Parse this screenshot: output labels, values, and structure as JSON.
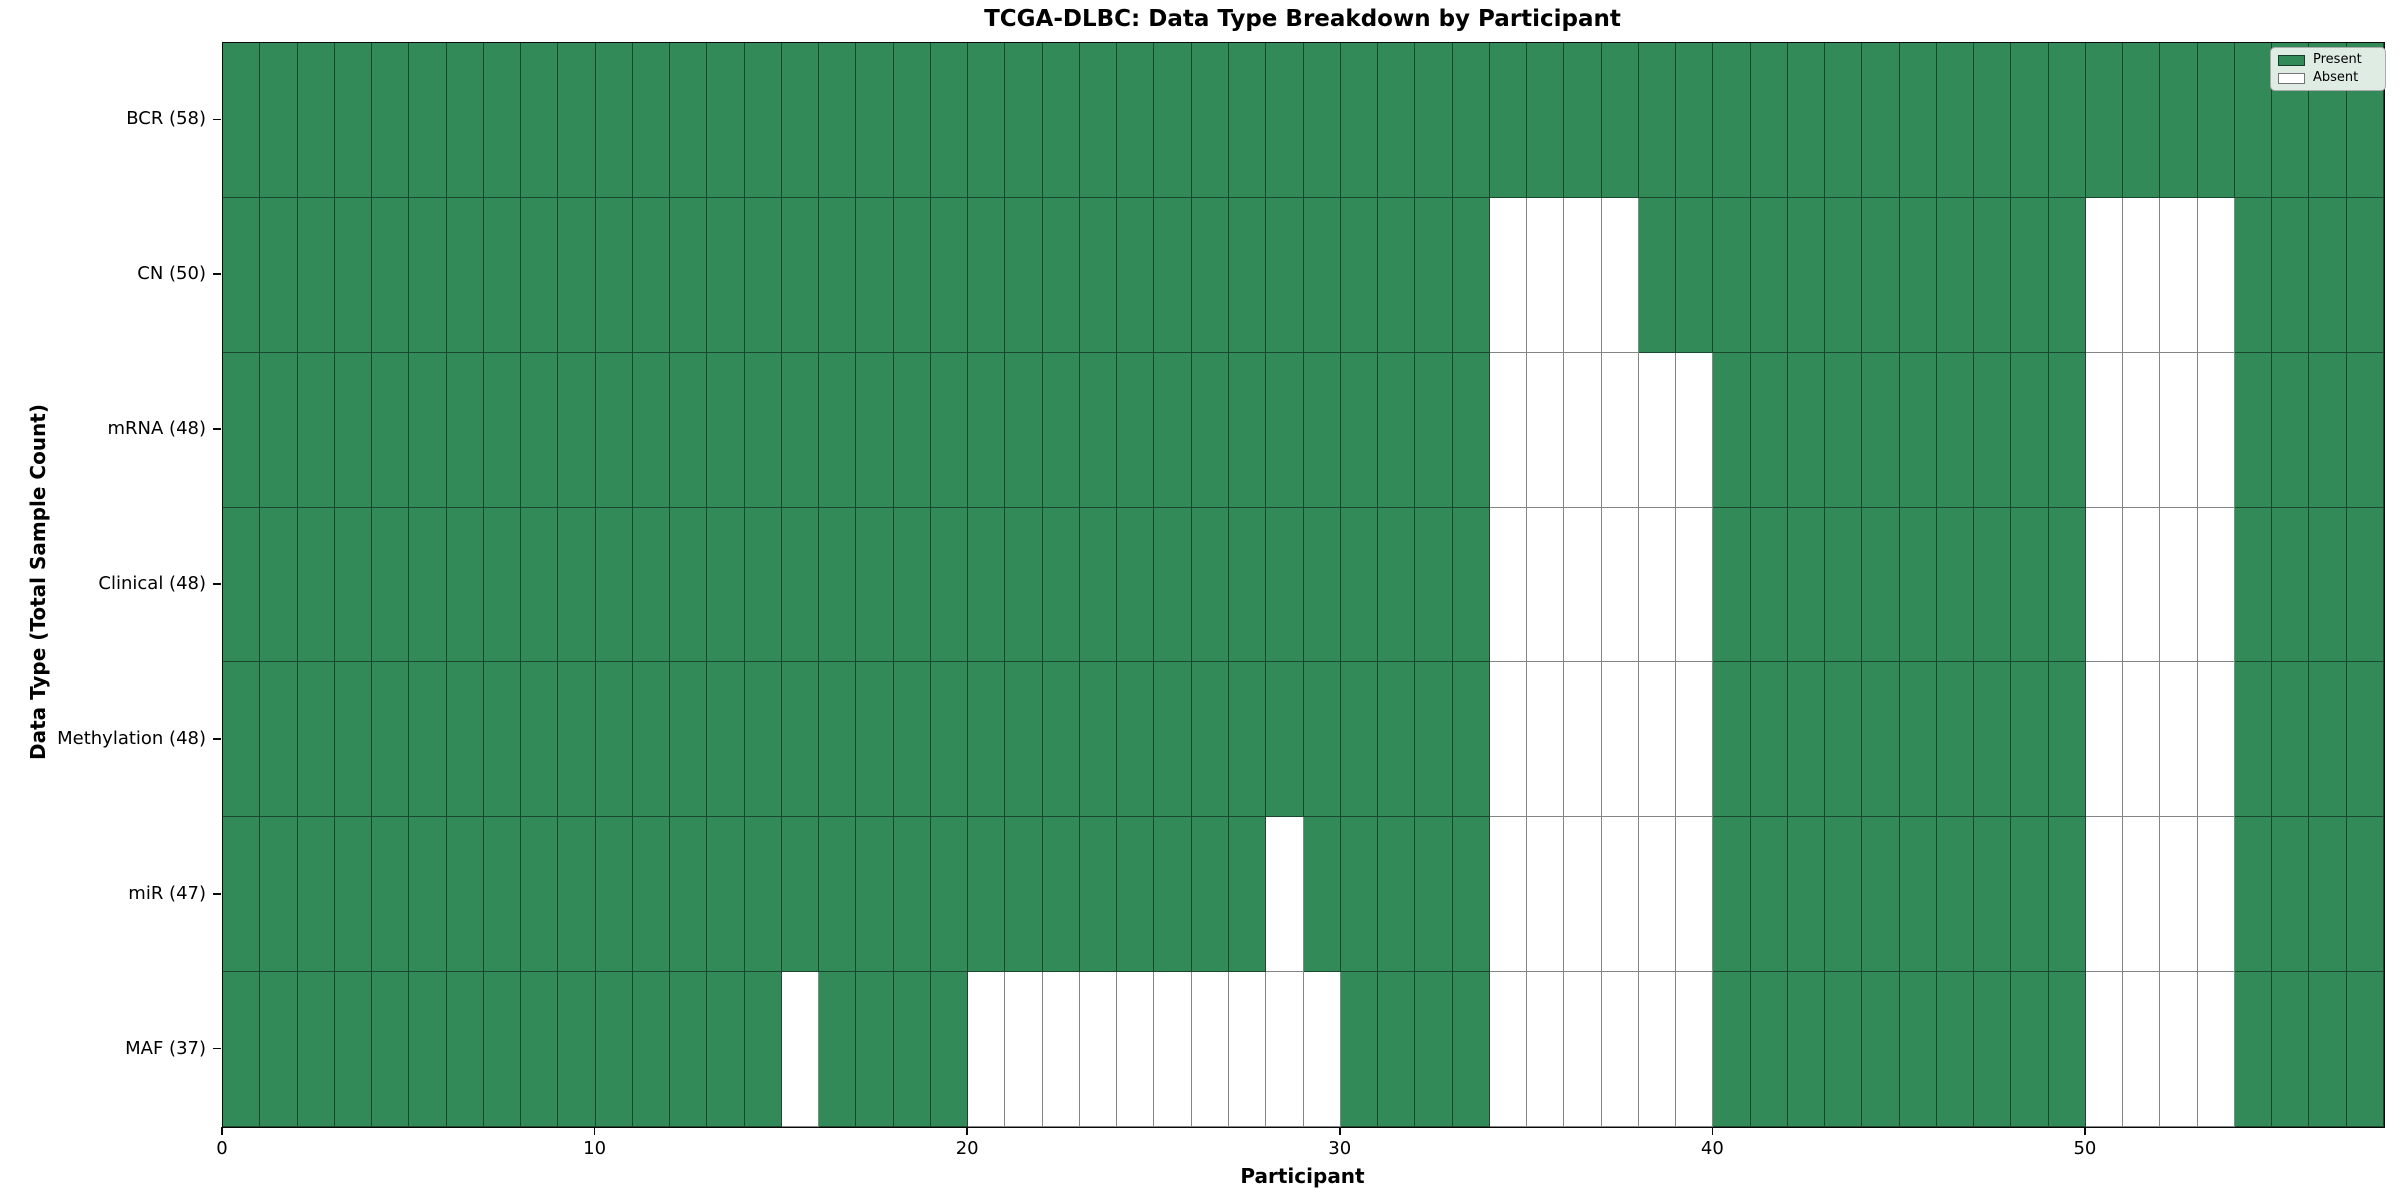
{
  "title": "TCGA-DLBC: Data Type Breakdown by Participant",
  "x_axis": {
    "label": "Participant",
    "ticks": [
      0,
      10,
      20,
      30,
      40,
      50
    ]
  },
  "y_axis": {
    "label": "Data Type (Total Sample Count)"
  },
  "legend": {
    "items": [
      {
        "label": "Present",
        "color": "#318a57"
      },
      {
        "label": "Absent",
        "color": "#ffffff"
      }
    ]
  },
  "colors": {
    "present": "#318a57",
    "absent": "#ffffff",
    "gridline": "rgba(0,0,0,0.48)"
  },
  "chart_data": {
    "type": "heatmap",
    "title": "TCGA-DLBC: Data Type Breakdown by Participant",
    "xlabel": "Participant",
    "ylabel": "Data Type (Total Sample Count)",
    "x_range": [
      0,
      58
    ],
    "n_participants": 58,
    "x_ticks": [
      0,
      10,
      20,
      30,
      40,
      50
    ],
    "legend_position": "upper right",
    "grid": true,
    "value_encoding": {
      "present": 1,
      "absent": 0
    },
    "rows": [
      {
        "name": "BCR",
        "label": "BCR (58)",
        "count": 58,
        "absent": []
      },
      {
        "name": "CN",
        "label": "CN (50)",
        "count": 50,
        "absent": [
          34,
          35,
          36,
          37,
          50,
          51,
          52,
          53
        ]
      },
      {
        "name": "mRNA",
        "label": "mRNA (48)",
        "count": 48,
        "absent": [
          34,
          35,
          36,
          37,
          38,
          39,
          50,
          51,
          52,
          53
        ]
      },
      {
        "name": "Clinical",
        "label": "Clinical (48)",
        "count": 48,
        "absent": [
          34,
          35,
          36,
          37,
          38,
          39,
          50,
          51,
          52,
          53
        ]
      },
      {
        "name": "Methylation",
        "label": "Methylation (48)",
        "count": 48,
        "absent": [
          34,
          35,
          36,
          37,
          38,
          39,
          50,
          51,
          52,
          53
        ]
      },
      {
        "name": "miR",
        "label": "miR (47)",
        "count": 47,
        "absent": [
          28,
          34,
          35,
          36,
          37,
          38,
          39,
          50,
          51,
          52,
          53
        ]
      },
      {
        "name": "MAF",
        "label": "MAF (37)",
        "count": 37,
        "absent": [
          15,
          20,
          21,
          22,
          23,
          24,
          25,
          26,
          27,
          28,
          29,
          34,
          35,
          36,
          37,
          38,
          39,
          50,
          51,
          52,
          53
        ]
      }
    ]
  }
}
